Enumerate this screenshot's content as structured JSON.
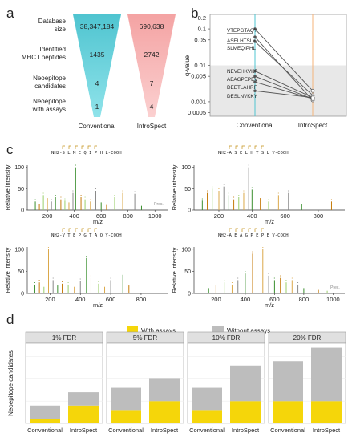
{
  "panels": {
    "a": "a",
    "b": "b",
    "c": "c",
    "d": "d"
  },
  "panel_a": {
    "rows": [
      {
        "label": "Database size",
        "conventional": "38,347,184",
        "introspect": "690,638"
      },
      {
        "label": "Identified MHC I peptides",
        "conventional": "1435",
        "introspect": "2742"
      },
      {
        "label": "Neoepitope candidates",
        "conventional": "4",
        "introspect": "7"
      },
      {
        "label": "Neoepitope with assays",
        "conventional": "1",
        "introspect": "4"
      }
    ],
    "col_labels": [
      "Conventional",
      "IntroSpect"
    ],
    "colors": {
      "conventional_top": "#4fc4d0",
      "conventional_bottom": "#8fe3ea",
      "introspect_top": "#f4a3a3",
      "introspect_bottom": "#fbd0d0"
    }
  },
  "chart_data": [
    {
      "panel": "b",
      "type": "line",
      "ylabel": "q-value",
      "yscale": "log",
      "yticks": [
        "0.2",
        "0.1",
        "0.05",
        "0.01",
        "0.005",
        "0.001",
        "0.0005"
      ],
      "x": [
        "Conventional",
        "IntroSpect"
      ],
      "shaded_below": 0.01,
      "series": [
        {
          "name": "VTEPGTAQY",
          "values": [
            0.1,
            0.002
          ]
        },
        {
          "name": "ASELHTSLY",
          "values": [
            0.06,
            0.0011
          ]
        },
        {
          "name": "SLMEQIPHL",
          "values": [
            0.045,
            0.0015
          ]
        },
        {
          "name": "NEVEHKVKF",
          "values": [
            0.007,
            0.0013
          ]
        },
        {
          "name": "AEAGPEPEV",
          "values": [
            0.005,
            0.0012
          ]
        },
        {
          "name": "DEETLAHRF",
          "values": [
            0.0035,
            0.0012
          ]
        },
        {
          "name": "DESLNVKKY",
          "values": [
            0.002,
            0.0013
          ]
        }
      ],
      "colors": {
        "conventional_line": "#4fc4d0",
        "introspect_line": "#f4b37a",
        "shade": "#e8e8e8"
      }
    },
    {
      "panel": "c",
      "type": "bar",
      "subtype": "spectrum",
      "charts": [
        {
          "peptide": "NH2-S L M E Q I P H L-COOH",
          "xlabel": "m/z",
          "ylabel": "Relative intensity",
          "xticks": [
            "200",
            "400",
            "600",
            "800",
            "1000"
          ],
          "yticks": [
            "0",
            "50",
            "100"
          ],
          "annotation": "Prec.",
          "peaks": [
            [
              110,
              20
            ],
            [
              140,
              15
            ],
            [
              170,
              35
            ],
            [
              200,
              28
            ],
            [
              230,
              20
            ],
            [
              260,
              30
            ],
            [
              300,
              25
            ],
            [
              330,
              22
            ],
            [
              360,
              18
            ],
            [
              390,
              40
            ],
            [
              410,
              100
            ],
            [
              450,
              30
            ],
            [
              480,
              25
            ],
            [
              520,
              20
            ],
            [
              560,
              45
            ],
            [
              600,
              18
            ],
            [
              640,
              12
            ],
            [
              700,
              30
            ],
            [
              760,
              40
            ],
            [
              850,
              38
            ],
            [
              900,
              10
            ]
          ]
        },
        {
          "peptide": "NH2-A S E L H T S L Y-COOH",
          "xlabel": "m/z",
          "ylabel": "Relative intensity",
          "xticks": [
            "200",
            "400",
            "600",
            "800"
          ],
          "yticks": [
            "0",
            "50",
            "100"
          ],
          "peaks": [
            [
              100,
              22
            ],
            [
              130,
              40
            ],
            [
              160,
              50
            ],
            [
              200,
              45
            ],
            [
              230,
              55
            ],
            [
              260,
              35
            ],
            [
              290,
              25
            ],
            [
              320,
              30
            ],
            [
              350,
              40
            ],
            [
              380,
              100
            ],
            [
              400,
              48
            ],
            [
              450,
              28
            ],
            [
              500,
              20
            ],
            [
              560,
              35
            ],
            [
              620,
              40
            ],
            [
              700,
              15
            ],
            [
              880,
              20
            ]
          ]
        },
        {
          "peptide": "NH2-V T E P G T A Q Y-COOH",
          "xlabel": "m/z",
          "ylabel": "Relative intensity",
          "xticks": [
            "200",
            "400",
            "600",
            "800"
          ],
          "yticks": [
            "0",
            "50",
            "100"
          ],
          "peaks": [
            [
              100,
              20
            ],
            [
              130,
              25
            ],
            [
              160,
              15
            ],
            [
              190,
              100
            ],
            [
              220,
              30
            ],
            [
              250,
              18
            ],
            [
              280,
              22
            ],
            [
              320,
              20
            ],
            [
              360,
              15
            ],
            [
              400,
              28
            ],
            [
              440,
              80
            ],
            [
              470,
              35
            ],
            [
              520,
              22
            ],
            [
              560,
              15
            ],
            [
              600,
              30
            ],
            [
              680,
              42
            ],
            [
              720,
              18
            ]
          ]
        },
        {
          "peptide": "NH2-A E A G P E P E V-COOH",
          "xlabel": "m/z",
          "ylabel": "Relative intensity",
          "xticks": [
            "200",
            "400",
            "600",
            "800",
            "1000"
          ],
          "yticks": [
            "0",
            "50",
            "100"
          ],
          "annotation": "Prec.",
          "peaks": [
            [
              150,
              12
            ],
            [
              200,
              18
            ],
            [
              260,
              25
            ],
            [
              310,
              20
            ],
            [
              350,
              30
            ],
            [
              400,
              45
            ],
            [
              450,
              90
            ],
            [
              480,
              35
            ],
            [
              520,
              100
            ],
            [
              560,
              40
            ],
            [
              600,
              30
            ],
            [
              640,
              35
            ],
            [
              680,
              25
            ],
            [
              720,
              30
            ],
            [
              760,
              20
            ],
            [
              800,
              12
            ],
            [
              900,
              8
            ],
            [
              960,
              6
            ]
          ]
        }
      ]
    },
    {
      "panel": "d",
      "type": "bar",
      "stacked": true,
      "ylabel": "Neoepitope candidates",
      "legend": [
        "With assays",
        "Without assays"
      ],
      "legend_position": "top",
      "colors": {
        "with": "#f5d60a",
        "without": "#bdbdbd"
      },
      "ylim": [
        0,
        18
      ],
      "facets": [
        {
          "title": "1% FDR",
          "categories": [
            "Conventional",
            "IntroSpect"
          ],
          "with": [
            1,
            4
          ],
          "without": [
            3,
            3
          ]
        },
        {
          "title": "5% FDR",
          "categories": [
            "Conventional",
            "IntroSpect"
          ],
          "with": [
            3,
            5
          ],
          "without": [
            5,
            5
          ]
        },
        {
          "title": "10% FDR",
          "categories": [
            "Conventional",
            "IntroSpect"
          ],
          "with": [
            3,
            5
          ],
          "without": [
            5,
            8
          ]
        },
        {
          "title": "20% FDR",
          "categories": [
            "Conventional",
            "IntroSpect"
          ],
          "with": [
            5,
            5
          ],
          "without": [
            9,
            12
          ]
        }
      ]
    }
  ]
}
